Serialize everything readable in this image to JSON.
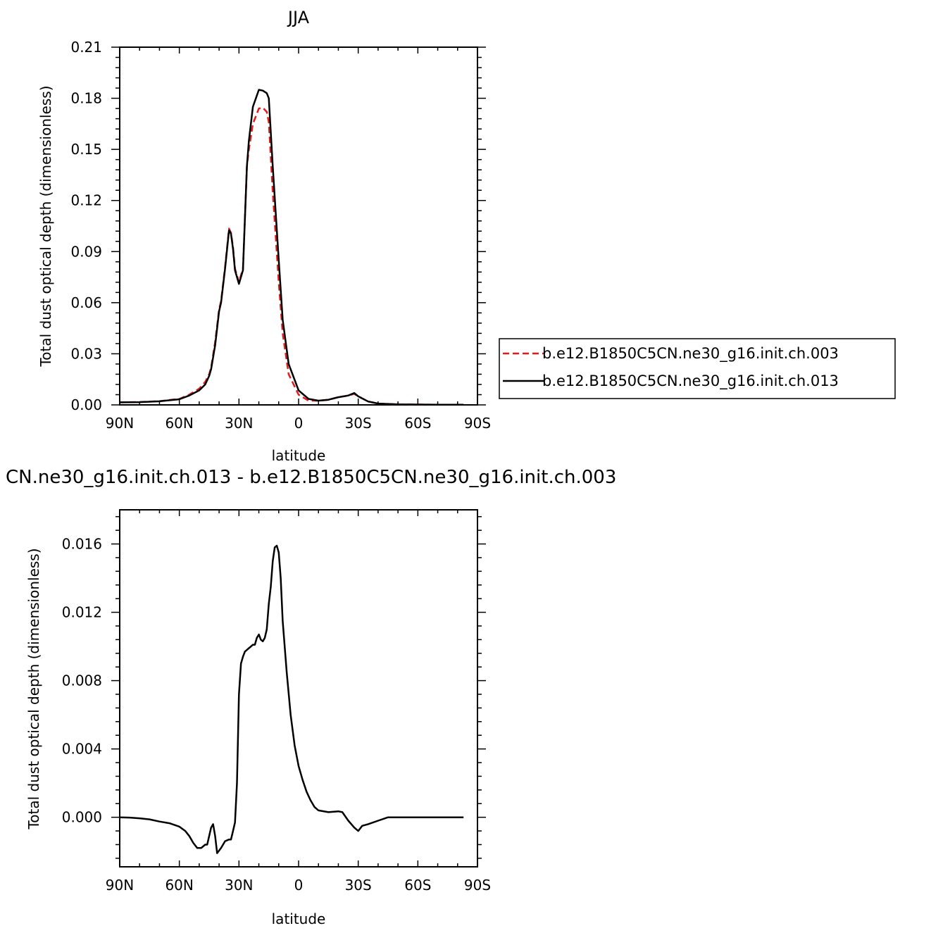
{
  "chart_data": [
    {
      "type": "line",
      "title": "JJA",
      "xlabel": "latitude",
      "ylabel": "Total dust optical depth (dimensionless)",
      "xlim": [
        90,
        -90
      ],
      "ylim": [
        0,
        0.21
      ],
      "xticks": [
        {
          "value": 90,
          "label": "90N"
        },
        {
          "value": 60,
          "label": "60N"
        },
        {
          "value": 30,
          "label": "30N"
        },
        {
          "value": 0,
          "label": "0"
        },
        {
          "value": -30,
          "label": "30S"
        },
        {
          "value": -60,
          "label": "60S"
        },
        {
          "value": -90,
          "label": "90S"
        }
      ],
      "yticks": [
        {
          "value": 0,
          "label": "0.00"
        },
        {
          "value": 0.03,
          "label": "0.03"
        },
        {
          "value": 0.06,
          "label": "0.06"
        },
        {
          "value": 0.09,
          "label": "0.09"
        },
        {
          "value": 0.12,
          "label": "0.12"
        },
        {
          "value": 0.15,
          "label": "0.15"
        },
        {
          "value": 0.18,
          "label": "0.18"
        },
        {
          "value": 0.21,
          "label": "0.21"
        }
      ],
      "legend_placement": "right",
      "series": [
        {
          "name": "b.e12.B1850C5CN.ne30_g16.init.ch.003",
          "color": "#e41a1c",
          "dash": "dashed",
          "x": [
            90,
            80,
            70,
            60,
            55,
            50,
            47,
            45,
            44,
            42,
            40,
            39,
            37,
            35,
            34,
            33,
            32,
            30,
            28,
            26,
            25,
            23,
            20,
            18,
            16,
            15,
            13,
            10,
            8,
            5,
            0,
            -5,
            -10,
            -15,
            -20,
            -25,
            -28,
            -30,
            -35,
            -40,
            -50,
            -60,
            -70,
            -80,
            -83
          ],
          "y": [
            0.0015,
            0.0017,
            0.0022,
            0.0035,
            0.006,
            0.0095,
            0.0135,
            0.018,
            0.022,
            0.037,
            0.056,
            0.061,
            0.081,
            0.1035,
            0.101,
            0.0925,
            0.08,
            0.072,
            0.08,
            0.14,
            0.15,
            0.165,
            0.174,
            0.1745,
            0.172,
            0.166,
            0.125,
            0.072,
            0.042,
            0.018,
            0.006,
            0.0025,
            0.0025,
            0.003,
            0.0045,
            0.0055,
            0.0065,
            0.005,
            0.002,
            0.0008,
            0.0003,
            0.0002,
            0.0001,
            0.0001,
            0.0001
          ]
        },
        {
          "name": "b.e12.B1850C5CN.ne30_g16.init.ch.013",
          "color": "#000000",
          "dash": "solid",
          "x": [
            90,
            80,
            70,
            60,
            55,
            50,
            47,
            45,
            44,
            42,
            40,
            39,
            37,
            35,
            34,
            33,
            32,
            30,
            28,
            26,
            25,
            23,
            20,
            18,
            16,
            15,
            13,
            10,
            8,
            5,
            0,
            -5,
            -10,
            -15,
            -20,
            -25,
            -28,
            -30,
            -35,
            -40,
            -50,
            -60,
            -70,
            -80,
            -83
          ],
          "y": [
            0.0015,
            0.0016,
            0.0021,
            0.0033,
            0.0055,
            0.0085,
            0.012,
            0.017,
            0.021,
            0.035,
            0.055,
            0.06,
            0.08,
            0.1025,
            0.1005,
            0.0915,
            0.079,
            0.071,
            0.079,
            0.14,
            0.155,
            0.175,
            0.185,
            0.1845,
            0.183,
            0.18,
            0.14,
            0.085,
            0.05,
            0.024,
            0.0085,
            0.0035,
            0.0025,
            0.003,
            0.0045,
            0.0055,
            0.007,
            0.005,
            0.002,
            0.0008,
            0.0003,
            0.0002,
            0.0001,
            0.0001,
            0.0001
          ]
        }
      ]
    },
    {
      "type": "line",
      "title": "CN.ne30_g16.init.ch.013 - b.e12.B1850C5CN.ne30_g16.init.ch.003",
      "xlabel": "latitude",
      "ylabel": "Total dust optical depth (dimensionless)",
      "xlim": [
        90,
        -90
      ],
      "ylim": [
        -0.0029,
        0.018
      ],
      "xticks": [
        {
          "value": 90,
          "label": "90N"
        },
        {
          "value": 60,
          "label": "60N"
        },
        {
          "value": 30,
          "label": "30N"
        },
        {
          "value": 0,
          "label": "0"
        },
        {
          "value": -30,
          "label": "30S"
        },
        {
          "value": -60,
          "label": "60S"
        },
        {
          "value": -90,
          "label": "90S"
        }
      ],
      "yticks": [
        {
          "value": 0,
          "label": "0.000"
        },
        {
          "value": 0.004,
          "label": "0.004"
        },
        {
          "value": 0.008,
          "label": "0.008"
        },
        {
          "value": 0.012,
          "label": "0.012"
        },
        {
          "value": 0.016,
          "label": "0.016"
        }
      ],
      "series": [
        {
          "color": "#000000",
          "dash": "solid",
          "x": [
            90,
            85,
            80,
            75,
            70,
            65,
            60,
            57,
            55,
            53,
            51,
            49,
            47,
            46,
            45,
            44,
            43,
            42,
            41,
            39,
            37,
            35,
            34,
            33,
            32,
            31,
            30,
            29,
            28,
            27,
            26,
            25,
            24,
            23,
            22,
            21,
            20,
            19,
            18,
            17,
            16,
            15,
            14,
            13,
            12,
            11,
            10,
            9,
            8,
            6,
            4,
            2,
            0,
            -2,
            -4,
            -6,
            -8,
            -10,
            -15,
            -20,
            -22,
            -25,
            -28,
            -30,
            -32,
            -35,
            -40,
            -45,
            -50,
            -60,
            -70,
            -80,
            -83
          ],
          "y": [
            0,
            -2e-05,
            -6e-05,
            -0.00012,
            -0.00025,
            -0.00035,
            -0.00055,
            -0.0008,
            -0.0011,
            -0.0015,
            -0.0018,
            -0.0018,
            -0.0016,
            -0.0016,
            -0.0011,
            -0.0006,
            -0.0004,
            -0.0011,
            -0.0021,
            -0.0018,
            -0.0014,
            -0.0013,
            -0.0013,
            -0.0008,
            -0.0003,
            0.002,
            0.0072,
            0.009,
            0.0094,
            0.0097,
            0.0098,
            0.0099,
            0.01,
            0.0101,
            0.0101,
            0.0105,
            0.0107,
            0.0104,
            0.0103,
            0.0105,
            0.011,
            0.0125,
            0.0135,
            0.015,
            0.0158,
            0.0159,
            0.0155,
            0.014,
            0.0115,
            0.0085,
            0.006,
            0.0042,
            0.003,
            0.0022,
            0.0015,
            0.001,
            0.0006,
            0.0004,
            0.0003,
            0.00035,
            0.0003,
            -0.0002,
            -0.0006,
            -0.0008,
            -0.0005,
            -0.0004,
            -0.0002,
            0,
            0,
            0,
            0,
            0,
            0
          ]
        }
      ]
    }
  ]
}
